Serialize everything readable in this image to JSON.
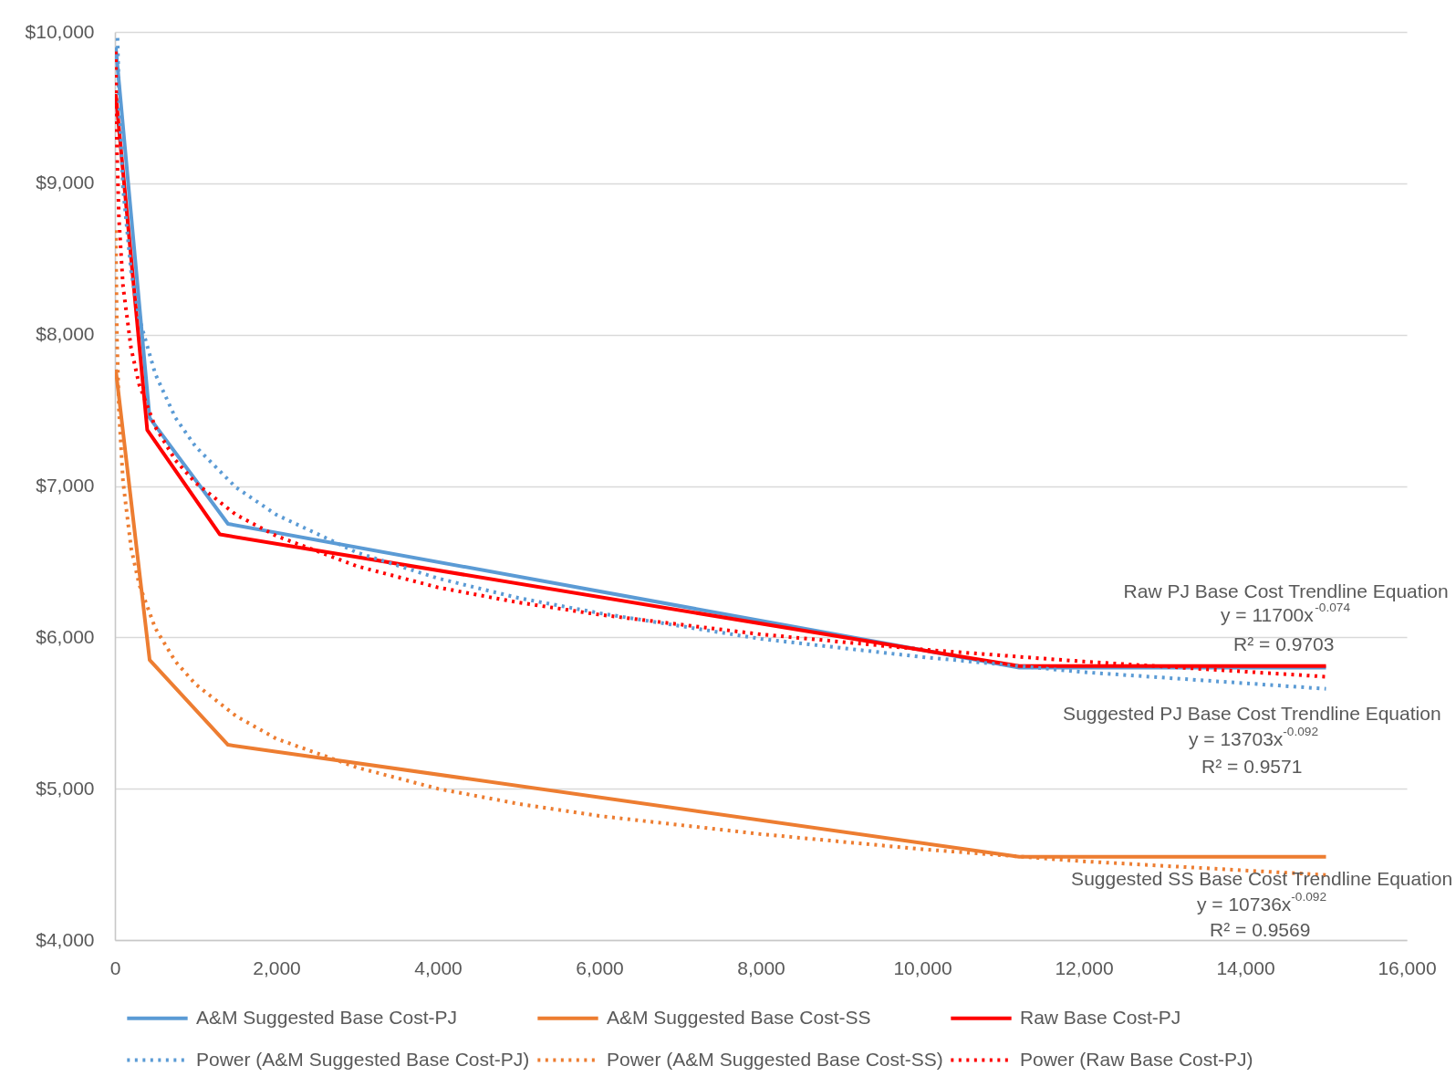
{
  "chart_data": {
    "type": "line",
    "xlim": [
      0,
      16000
    ],
    "ylim": [
      4000,
      10000
    ],
    "xticks": [
      0,
      {
        "value": 2000,
        "label": "2,000"
      },
      {
        "value": 4000,
        "label": "4,000"
      },
      {
        "value": 6000,
        "label": "6,000"
      },
      {
        "value": 8000,
        "label": "8,000"
      },
      {
        "value": 10000,
        "label": "10,000"
      },
      {
        "value": 12000,
        "label": "12,000"
      },
      {
        "value": 14000,
        "label": "14,000"
      },
      {
        "value": 16000,
        "label": "16,000"
      }
    ],
    "yticks": [
      {
        "value": 4000,
        "label": "$4,000"
      },
      {
        "value": 5000,
        "label": "$5,000"
      },
      {
        "value": 6000,
        "label": "$6,000"
      },
      {
        "value": 7000,
        "label": "$7,000"
      },
      {
        "value": 8000,
        "label": "$8,000"
      },
      {
        "value": 9000,
        "label": "$9,000"
      },
      {
        "value": 10000,
        "label": "$10,000"
      }
    ],
    "grid": "y",
    "legend": "bottom",
    "series": [
      {
        "name": "A&M Suggested Base Cost-PJ",
        "color": "#5b9bd5",
        "line_style": "solid",
        "x": [
          10,
          430,
          1400,
          11200,
          15000
        ],
        "values": [
          9900,
          7450,
          6750,
          5800,
          5800
        ]
      },
      {
        "name": "A&M Suggested Base Cost-SS",
        "color": "#ed7d31",
        "line_style": "solid",
        "x": [
          10,
          430,
          1400,
          11200,
          15000
        ],
        "values": [
          7770,
          5850,
          5290,
          4550,
          4550
        ]
      },
      {
        "name": "Raw Base Cost-PJ",
        "color": "#ff0000",
        "line_style": "solid",
        "x": [
          10,
          400,
          1300,
          11200,
          15000
        ],
        "values": [
          9590,
          7370,
          6680,
          5810,
          5810
        ]
      },
      {
        "name": "Power (A&M Suggested Base Cost-PJ)",
        "color": "#5b9bd5",
        "line_style": "dotted",
        "x": [
          32,
          50,
          100,
          200,
          300,
          500,
          750,
          1000,
          1500,
          2000,
          3000,
          4000,
          5000,
          6000,
          8000,
          10000,
          12000,
          15000
        ],
        "values": [
          9960,
          9560,
          8970,
          8420,
          8110,
          7740,
          7450,
          7260,
          6990,
          6810,
          6560,
          6390,
          6260,
          6160,
          5990,
          5870,
          5770,
          5660
        ]
      },
      {
        "name": "Power (A&M Suggested Base Cost-SS)",
        "color": "#ed7d31",
        "line_style": "dotted",
        "x": [
          10,
          25,
          50,
          100,
          200,
          300,
          500,
          750,
          1000,
          1500,
          2000,
          3000,
          4000,
          5000,
          6000,
          8000,
          10000,
          12000,
          15000
        ],
        "values": [
          8690,
          7980,
          7490,
          7030,
          6590,
          6350,
          6060,
          5840,
          5690,
          5480,
          5330,
          5140,
          5000,
          4900,
          4820,
          4700,
          4600,
          4520,
          4430
        ]
      },
      {
        "name": "Power (Raw Base Cost-PJ)",
        "color": "#ff0000",
        "line_style": "dotted",
        "x": [
          10,
          25,
          50,
          100,
          200,
          300,
          500,
          750,
          1000,
          1500,
          2000,
          3000,
          4000,
          5000,
          6000,
          8000,
          10000,
          12000,
          15000
        ],
        "values": [
          9870,
          9220,
          8760,
          8320,
          7910,
          7670,
          7390,
          7170,
          7020,
          6810,
          6670,
          6470,
          6330,
          6230,
          6150,
          6020,
          5920,
          5840,
          5740
        ]
      }
    ],
    "annotations": [
      "Raw PJ Base Cost Trendline Equation",
      "y = 11700x$^{-0.074}$",
      "R² = 0.9703",
      "Suggested PJ Base Cost Trendline Equation",
      "y = 13703x$^{-0.092}$",
      "R² = 0.9571",
      "Suggested SS Base Cost Trendline Equation",
      "y = 10736x$^{-0.092}$",
      "R² = 0.9569"
    ]
  }
}
